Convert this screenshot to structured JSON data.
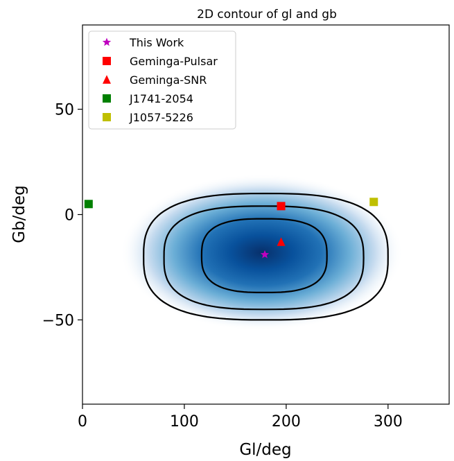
{
  "chart_data": {
    "type": "contour",
    "title": "2D contour of gl and gb",
    "xlabel": "Gl/deg",
    "ylabel": "Gb/deg",
    "xlim": [
      0,
      360
    ],
    "ylim": [
      -90,
      90
    ],
    "xticks": [
      0,
      100,
      200,
      300
    ],
    "yticks": [
      50,
      0,
      -50
    ],
    "density": {
      "peak": [
        176,
        -18
      ],
      "contour_levels": [
        {
          "x_range": [
            60,
            300
          ],
          "y_range": [
            -50,
            10
          ]
        },
        {
          "x_range": [
            80,
            276
          ],
          "y_range": [
            -45,
            4
          ]
        },
        {
          "x_range": [
            117,
            240
          ],
          "y_range": [
            -37,
            -2
          ]
        }
      ],
      "colormap": "Blues"
    },
    "legend_position": "upper-left",
    "series": [
      {
        "name": "This Work",
        "marker": "star",
        "color": "#bf00bf",
        "x": 179,
        "y": -19
      },
      {
        "name": "Geminga-Pulsar",
        "marker": "square",
        "color": "#ff0000",
        "x": 195,
        "y": 4
      },
      {
        "name": "Geminga-SNR",
        "marker": "triangle",
        "color": "#ff0000",
        "x": 195,
        "y": -13
      },
      {
        "name": "J1741-2054",
        "marker": "square",
        "color": "#008000",
        "x": 6,
        "y": 5
      },
      {
        "name": "J1057-5226",
        "marker": "square",
        "color": "#bfbf00",
        "x": 286,
        "y": 6
      }
    ]
  }
}
